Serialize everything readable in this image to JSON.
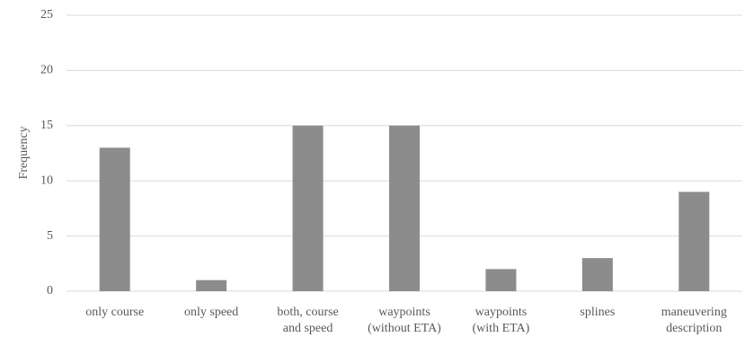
{
  "chart_data": {
    "type": "bar",
    "categories": [
      [
        "only course"
      ],
      [
        "only speed"
      ],
      [
        "both, course",
        "and speed"
      ],
      [
        "waypoints",
        "(without ETA)"
      ],
      [
        "waypoints",
        "(with ETA)"
      ],
      [
        "splines"
      ],
      [
        "maneuvering",
        "description"
      ]
    ],
    "values": [
      13,
      1,
      15,
      15,
      2,
      3,
      9
    ],
    "title": "",
    "xlabel": "",
    "ylabel": "Frequency",
    "ylim": [
      0,
      25
    ],
    "yticks": [
      0,
      5,
      10,
      15,
      20,
      25
    ],
    "grid": true,
    "legend": "none",
    "bar_color": "#8c8c8c",
    "grid_color": "#d9d9d9",
    "text_color": "#595959"
  }
}
